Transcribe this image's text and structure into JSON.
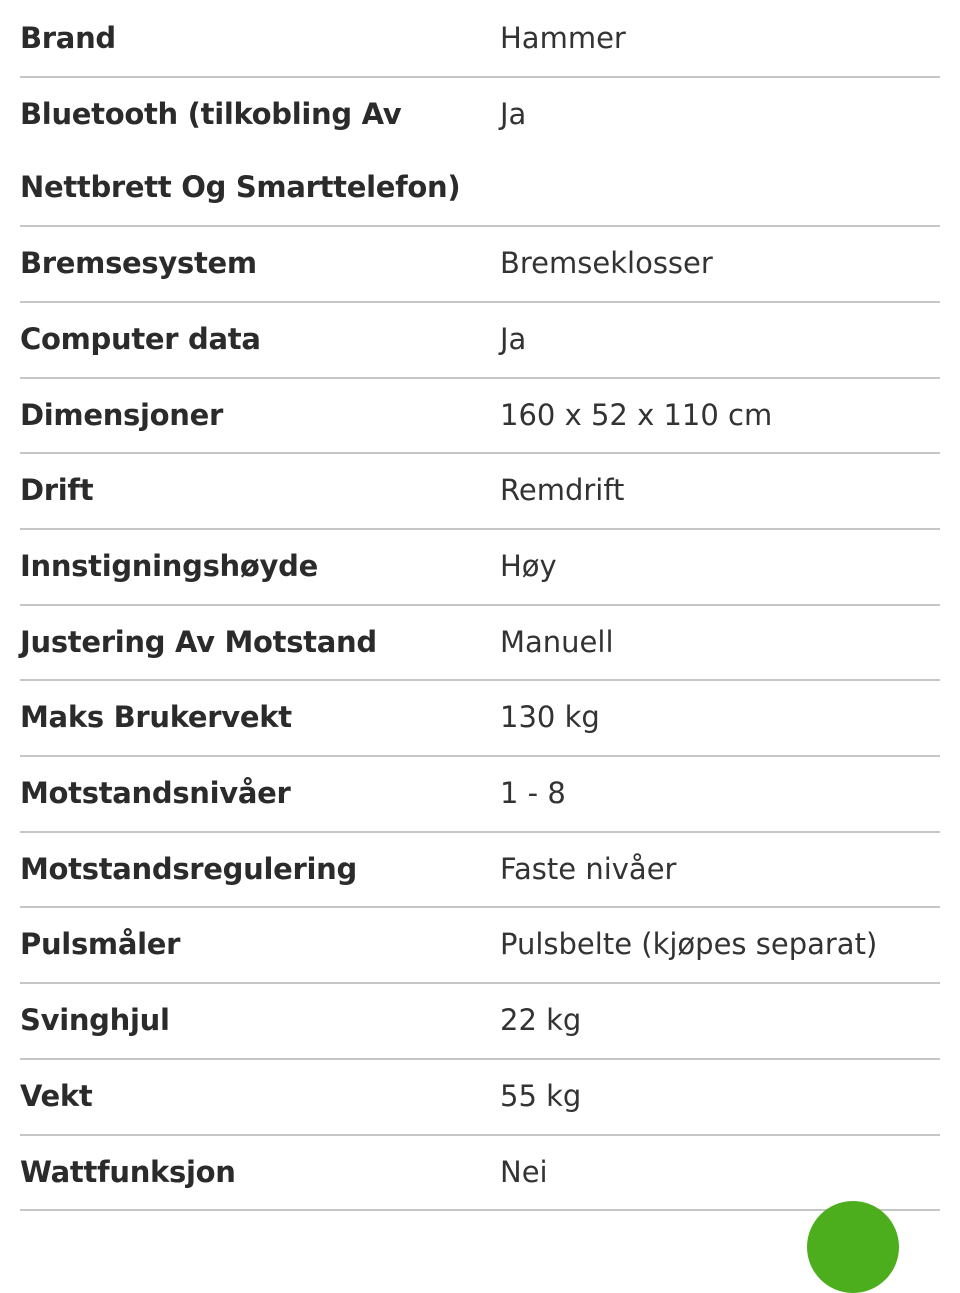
{
  "specs": [
    {
      "label": "Brand",
      "value": "Hammer"
    },
    {
      "label": "Bluetooth (tilkobling Av Nettbrett Og Smarttelefon)",
      "value": "Ja"
    },
    {
      "label": "Bremsesystem",
      "value": "Bremseklosser"
    },
    {
      "label": "Computer data",
      "value": "Ja"
    },
    {
      "label": "Dimensjoner",
      "value": "160 x 52 x 110 cm"
    },
    {
      "label": "Drift",
      "value": "Remdrift"
    },
    {
      "label": "Innstigningshøyde",
      "value": "Høy"
    },
    {
      "label": "Justering Av Motstand",
      "value": "Manuell"
    },
    {
      "label": "Maks Brukervekt",
      "value": "130 kg"
    },
    {
      "label": "Motstandsnivåer",
      "value": "1 - 8"
    },
    {
      "label": "Motstandsregulering",
      "value": "Faste nivåer"
    },
    {
      "label": "Pulsmåler",
      "value": "Pulsbelte (kjøpes separat)"
    },
    {
      "label": "Svinghjul",
      "value": "22 kg"
    },
    {
      "label": "Vekt",
      "value": "55 kg"
    },
    {
      "label": "Wattfunksjon",
      "value": "Nei"
    }
  ],
  "colors": {
    "accent": "#4cae1c",
    "divider": "#c6c6c6"
  }
}
